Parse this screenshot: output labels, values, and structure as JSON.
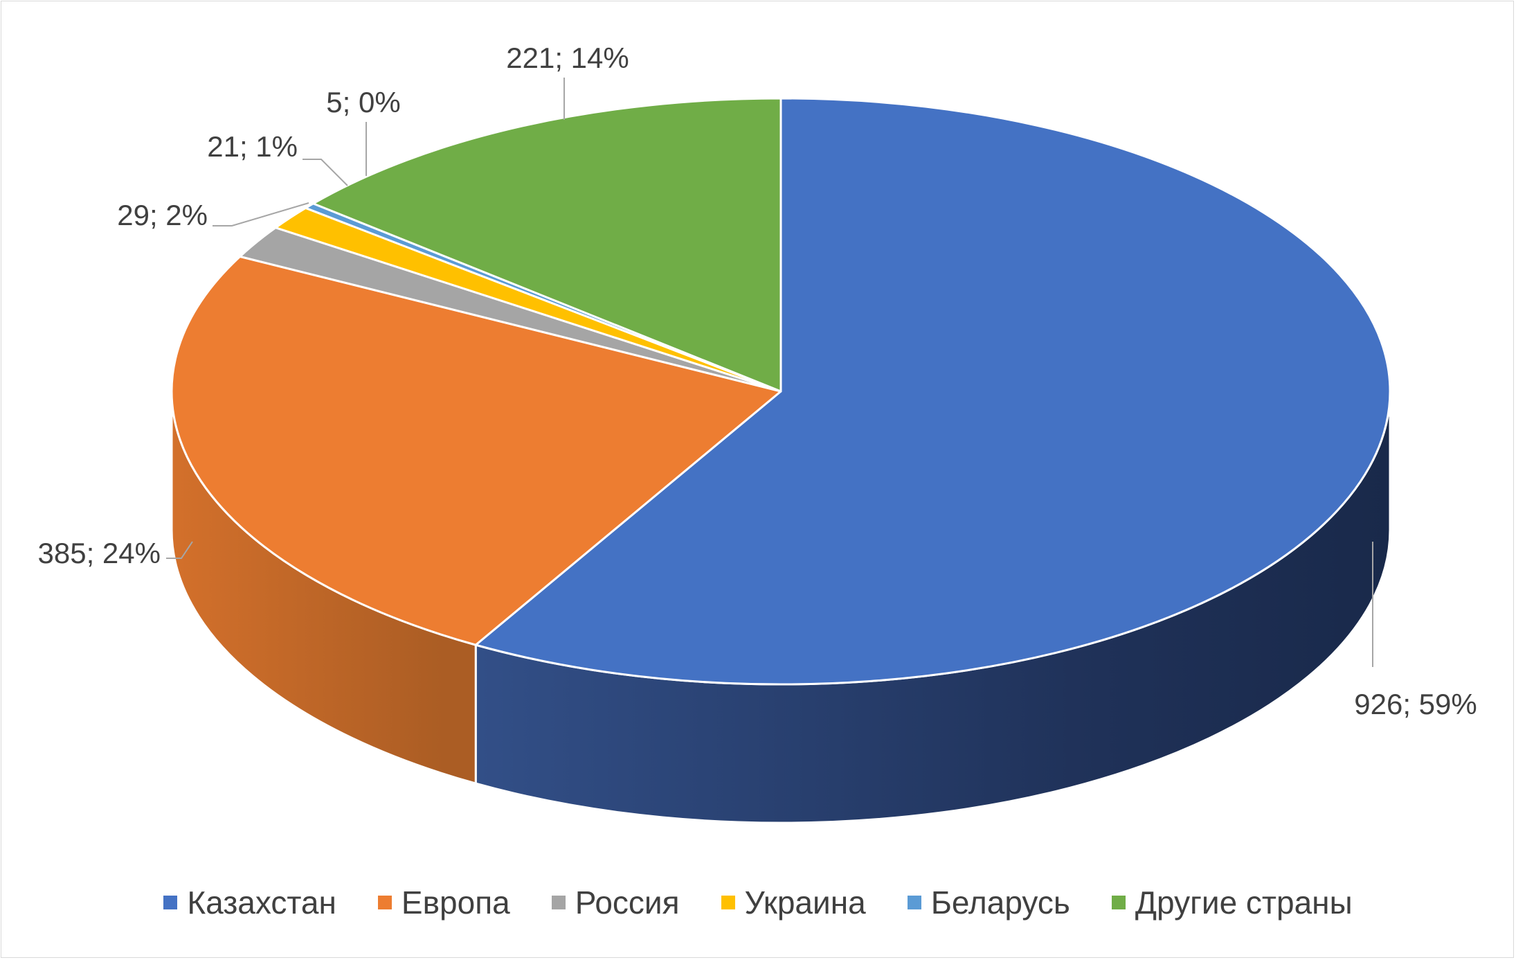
{
  "chart_data": {
    "type": "pie",
    "style": "3d",
    "categories": [
      "Казахстан",
      "Европа",
      "Россия",
      "Украина",
      "Беларусь",
      "Другие страны"
    ],
    "values": [
      926,
      385,
      29,
      21,
      5,
      221
    ],
    "data_labels": [
      "926; 59%",
      "385; 24%",
      "29; 2%",
      "21; 1%",
      "5; 0%",
      "221; 14%"
    ],
    "colors": [
      "#4472C4",
      "#ED7D31",
      "#A5A5A5",
      "#FFC000",
      "#5B9BD5",
      "#70AD47"
    ],
    "legend_position": "bottom"
  }
}
